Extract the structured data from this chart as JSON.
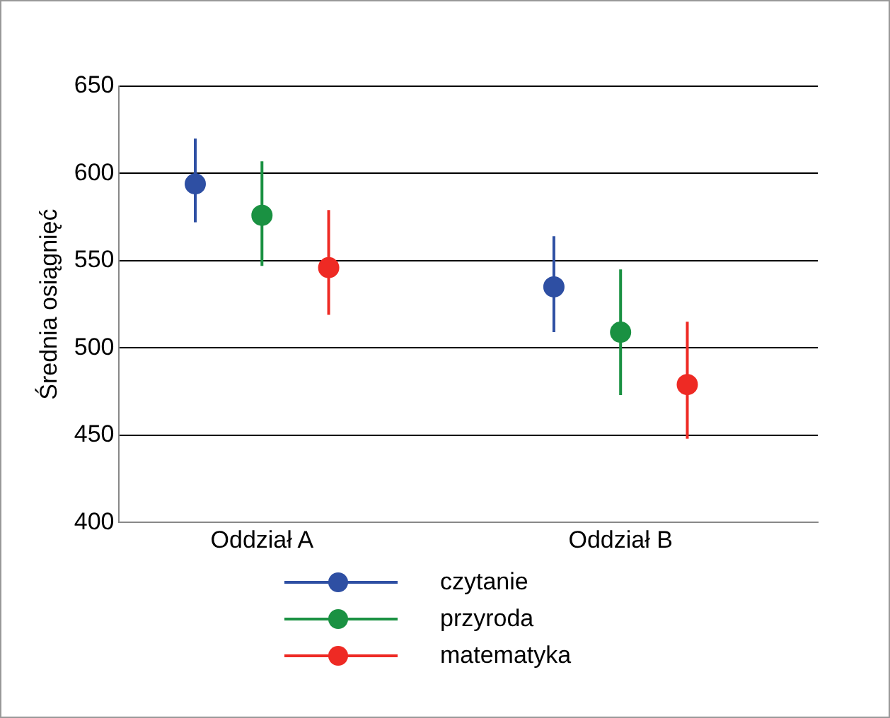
{
  "chart_data": {
    "type": "scatter",
    "ylabel": "Średnia osiągnięć",
    "categories": [
      "Oddział A",
      "Oddział B"
    ],
    "series": [
      {
        "name": "czytanie",
        "color": "#2e4fa3",
        "values": [
          594,
          535
        ],
        "errors": [
          [
            572,
            620
          ],
          [
            509,
            564
          ]
        ]
      },
      {
        "name": "przyroda",
        "color": "#1a9142",
        "values": [
          576,
          509
        ],
        "errors": [
          [
            547,
            607
          ],
          [
            473,
            545
          ]
        ]
      },
      {
        "name": "matematyka",
        "color": "#ee2a24",
        "values": [
          546,
          479
        ],
        "errors": [
          [
            519,
            579
          ],
          [
            448,
            515
          ]
        ]
      }
    ],
    "ylim": [
      400,
      650
    ],
    "yticks": [
      400,
      450,
      500,
      550,
      600,
      650
    ],
    "grid": "y",
    "legend": "bottom",
    "marker": "circle"
  }
}
